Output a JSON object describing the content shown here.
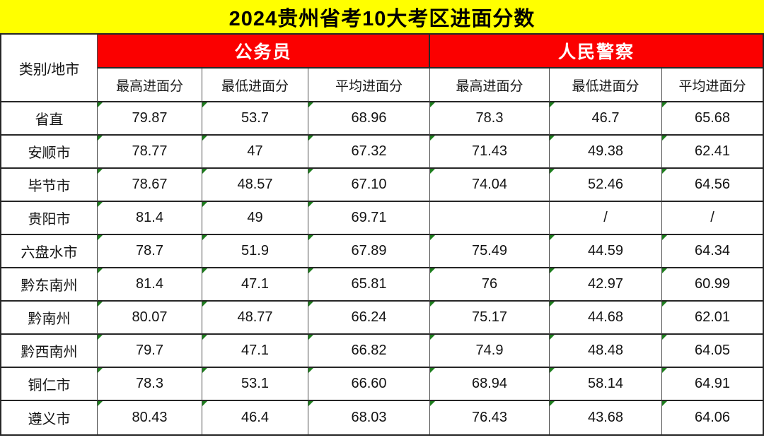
{
  "colors": {
    "title_bg": "#FFFF00",
    "header_bg": "#FB0000",
    "header_text": "#FFFFFF",
    "flag_green": "#1E7E1E",
    "accent_green": "#217346"
  },
  "chart_data": {
    "type": "table",
    "title": "2024贵州省考10大考区进面分数",
    "corner_header": "类别/地市",
    "column_groups": [
      {
        "label": "公务员",
        "span": 3
      },
      {
        "label": "人民警察",
        "span": 3
      }
    ],
    "sub_columns": [
      "最高进面分",
      "最低进面分",
      "平均进面分",
      "最高进面分",
      "最低进面分",
      "平均进面分"
    ],
    "rows": [
      {
        "region": "省直",
        "values": [
          "79.87",
          "53.7",
          "68.96",
          "78.3",
          "46.7",
          "65.68"
        ]
      },
      {
        "region": "安顺市",
        "values": [
          "78.77",
          "47",
          "67.32",
          "71.43",
          "49.38",
          "62.41"
        ],
        "left_accent": true
      },
      {
        "region": "毕节市",
        "values": [
          "78.67",
          "48.57",
          "67.10",
          "74.04",
          "52.46",
          "64.56"
        ]
      },
      {
        "region": "贵阳市",
        "values": [
          "81.4",
          "49",
          "69.71",
          "",
          "/",
          "/"
        ]
      },
      {
        "region": "六盘水市",
        "values": [
          "78.7",
          "51.9",
          "67.89",
          "75.49",
          "44.59",
          "64.34"
        ]
      },
      {
        "region": "黔东南州",
        "values": [
          "81.4",
          "47.1",
          "65.81",
          "76",
          "42.97",
          "60.99"
        ]
      },
      {
        "region": "黔南州",
        "values": [
          "80.07",
          "48.77",
          "66.24",
          "75.17",
          "44.68",
          "62.01"
        ]
      },
      {
        "region": "黔西南州",
        "values": [
          "79.7",
          "47.1",
          "66.82",
          "74.9",
          "48.48",
          "64.05"
        ]
      },
      {
        "region": "铜仁市",
        "values": [
          "78.3",
          "53.1",
          "66.60",
          "68.94",
          "58.14",
          "64.91"
        ]
      },
      {
        "region": "遵义市",
        "values": [
          "80.43",
          "46.4",
          "68.03",
          "76.43",
          "43.68",
          "64.06"
        ]
      }
    ]
  }
}
